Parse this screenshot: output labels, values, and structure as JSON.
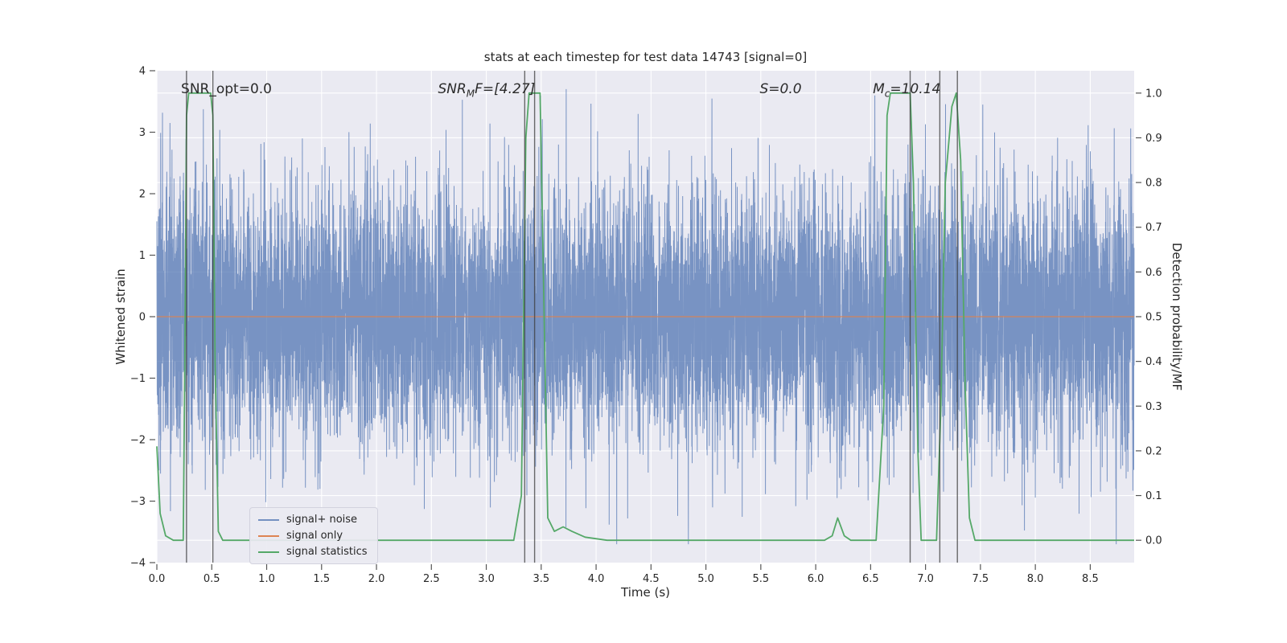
{
  "page": {
    "background": "#ffffff"
  },
  "chart_data": {
    "type": "line",
    "title": "stats at each timestep for test data 14743 [signal=0]",
    "xlabel": "Time (s)",
    "ylabel_left": "Whitened strain",
    "ylabel_right": "Detection probability/MF",
    "xlim": [
      0,
      8.9
    ],
    "ylim_left": [
      -4,
      4
    ],
    "ylim_right": [
      -0.05,
      1.05
    ],
    "grid": true,
    "legend_position": "lower left",
    "colors": {
      "axes_bg": "#eaeaf2",
      "grid": "#ffffff",
      "text": "#262626",
      "tick": "#555555",
      "vline": "#3c3c3c",
      "noise_blue": "#4C72B0",
      "signal_orange": "#DD8452",
      "stats_green": "#55A868"
    },
    "xticks": {
      "values": [
        0,
        0.5,
        1,
        1.5,
        2,
        2.5,
        3,
        3.5,
        4,
        4.5,
        5,
        5.5,
        6,
        6.5,
        7,
        7.5,
        8,
        8.5
      ],
      "labels": [
        "0.0",
        "0.5",
        "1.0",
        "1.5",
        "2.0",
        "2.5",
        "3.0",
        "3.5",
        "4.0",
        "4.5",
        "5.0",
        "5.5",
        "6.0",
        "6.5",
        "7.0",
        "7.5",
        "8.0",
        "8.5"
      ]
    },
    "yticks_left": {
      "values": [
        4,
        3,
        2,
        1,
        0,
        -1,
        -2,
        -3,
        -4
      ],
      "labels": [
        "4",
        "3",
        "2",
        "1",
        "0",
        "−1",
        "−2",
        "−3",
        "−4"
      ]
    },
    "yticks_right": {
      "values": [
        1,
        0.9,
        0.8,
        0.7,
        0.6,
        0.5,
        0.4,
        0.3,
        0.2,
        0.1,
        0
      ],
      "labels": [
        "1.0",
        "0.9",
        "0.8",
        "0.7",
        "0.6",
        "0.5",
        "0.4",
        "0.3",
        "0.2",
        "0.1",
        "0.0"
      ]
    },
    "vlines": [
      0.27,
      0.51,
      3.35,
      3.44,
      6.86,
      7.13,
      7.29
    ],
    "annotations": [
      {
        "t": 0.22,
        "italic": false,
        "pre": "SNR_opt=0.0",
        "sub": "",
        "post": ""
      },
      {
        "t": 2.56,
        "italic": true,
        "pre": "SNR",
        "sub": "M",
        "post": "F=[4.27]"
      },
      {
        "t": 5.49,
        "italic": true,
        "pre": "S",
        "sub": "",
        "post": "=0.0"
      },
      {
        "t": 6.52,
        "italic": true,
        "pre": "M",
        "sub": "c",
        "post": "=10.14"
      }
    ],
    "series": [
      {
        "name": "signal+ noise",
        "axis": "left",
        "type": "gaussian_noise",
        "color": "#4C72B0",
        "opacity": 0.72,
        "seed": 14743,
        "n": 9000,
        "std": 1.05,
        "clip": 3.7
      },
      {
        "name": "signal only",
        "axis": "left",
        "type": "constant",
        "color": "#DD8452",
        "opacity": 0.9,
        "value": 0
      },
      {
        "name": "signal statistics",
        "axis": "right",
        "type": "xy",
        "color": "#55A868",
        "opacity": 1,
        "points": [
          [
            0,
            0.21
          ],
          [
            0.03,
            0.06
          ],
          [
            0.08,
            0.01
          ],
          [
            0.15,
            0
          ],
          [
            0.24,
            0
          ],
          [
            0.255,
            0.4
          ],
          [
            0.27,
            0.95
          ],
          [
            0.29,
            1
          ],
          [
            0.49,
            1
          ],
          [
            0.51,
            0.95
          ],
          [
            0.53,
            0.4
          ],
          [
            0.56,
            0.02
          ],
          [
            0.6,
            0
          ],
          [
            1.5,
            0
          ],
          [
            3.25,
            0
          ],
          [
            3.32,
            0.1
          ],
          [
            3.36,
            0.9
          ],
          [
            3.39,
            1
          ],
          [
            3.49,
            1
          ],
          [
            3.52,
            0.6
          ],
          [
            3.56,
            0.05
          ],
          [
            3.62,
            0.02
          ],
          [
            3.7,
            0.03
          ],
          [
            3.78,
            0.02
          ],
          [
            3.9,
            0.007
          ],
          [
            4.1,
            0
          ],
          [
            5.5,
            0
          ],
          [
            6.08,
            0
          ],
          [
            6.15,
            0.01
          ],
          [
            6.2,
            0.05
          ],
          [
            6.26,
            0.01
          ],
          [
            6.32,
            0
          ],
          [
            6.55,
            0
          ],
          [
            6.62,
            0.3
          ],
          [
            6.65,
            0.95
          ],
          [
            6.68,
            1
          ],
          [
            6.86,
            1
          ],
          [
            6.89,
            0.8
          ],
          [
            6.93,
            0.2
          ],
          [
            6.96,
            0
          ],
          [
            7.1,
            0
          ],
          [
            7.14,
            0.3
          ],
          [
            7.18,
            0.8
          ],
          [
            7.24,
            0.97
          ],
          [
            7.28,
            1
          ],
          [
            7.32,
            0.85
          ],
          [
            7.36,
            0.35
          ],
          [
            7.4,
            0.05
          ],
          [
            7.45,
            0
          ],
          [
            8.9,
            0
          ]
        ]
      }
    ],
    "legend": {
      "entries": [
        {
          "label": "signal+ noise",
          "color": "#4C72B0",
          "opacity": 0.75
        },
        {
          "label": "signal only",
          "color": "#DD8452",
          "opacity": 1
        },
        {
          "label": "signal statistics",
          "color": "#55A868",
          "opacity": 1
        }
      ]
    }
  }
}
